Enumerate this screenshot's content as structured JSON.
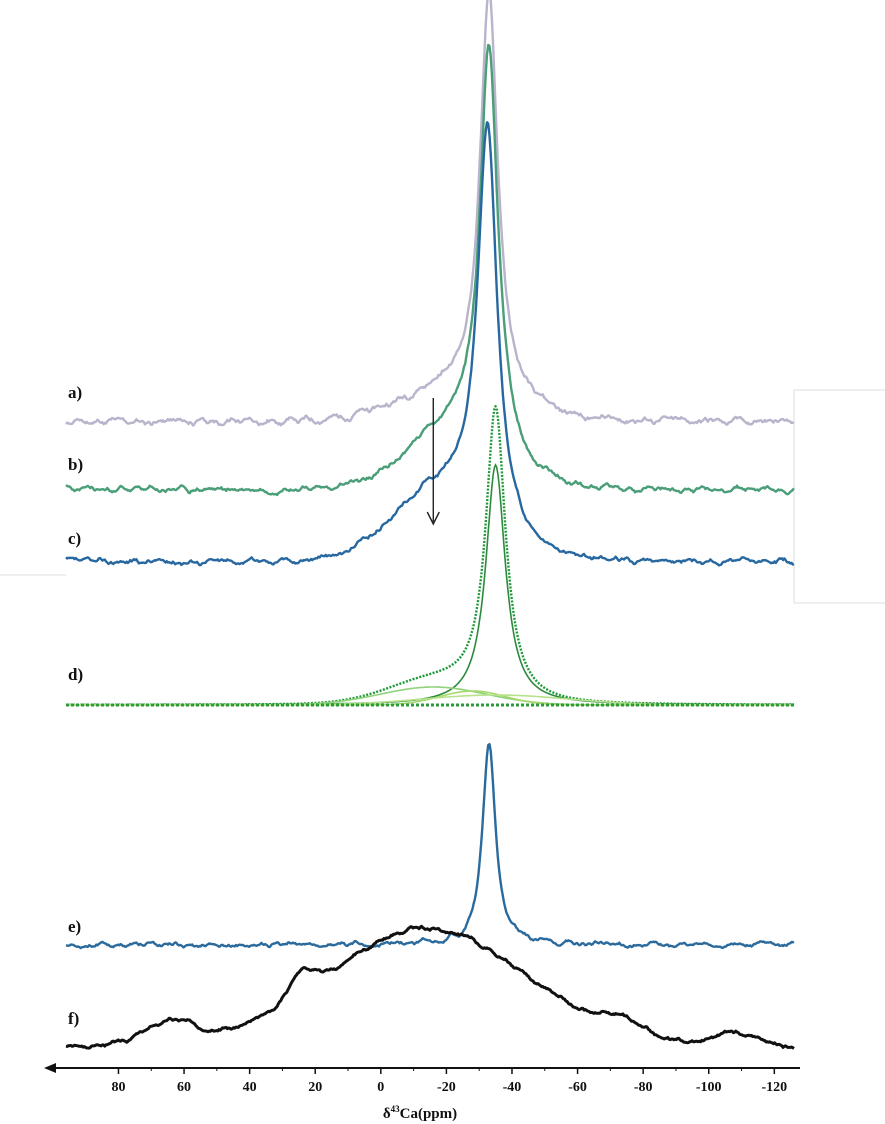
{
  "chart_data": {
    "type": "line",
    "xlabel": "δ⁴³Ca(ppm)",
    "xlabel_prefix": "δ",
    "xlabel_sup": "43",
    "xlabel_rest": "Ca(ppm)",
    "xlim": [
      96,
      -126
    ],
    "x_reversed": true,
    "x_ticks": [
      80,
      60,
      40,
      20,
      0,
      -20,
      -40,
      -60,
      -80,
      -100,
      -120
    ],
    "x_tick_labels": [
      "80",
      "60",
      "40",
      "20",
      "0",
      "-20",
      "-40",
      "-60",
      "-80",
      "-100",
      "-120"
    ],
    "grid": false,
    "legend": "none",
    "annotations": [
      {
        "type": "arrow",
        "x": -16,
        "description": "downward arrow marking shoulder"
      }
    ],
    "series": [
      {
        "label": "a)",
        "color": "#b8b4cc",
        "peak_x": -33,
        "peak_height": 410,
        "peak_width": 3.2,
        "broad_height": 30,
        "broad_x": -22,
        "broad_width": 16,
        "noise_amp": 9,
        "seed": 11
      },
      {
        "label": "b)",
        "color": "#4a9e78",
        "peak_x": -33,
        "peak_height": 405,
        "peak_width": 3.3,
        "broad_height": 60,
        "broad_x": -22,
        "broad_width": 13,
        "noise_amp": 8,
        "seed": 23
      },
      {
        "label": "c)",
        "color": "#2868a0",
        "peak_x": -32.5,
        "peak_height": 400,
        "peak_width": 3.5,
        "broad_height": 70,
        "broad_x": -18,
        "broad_width": 14,
        "noise_amp": 7,
        "seed": 37
      },
      {
        "label": "d)",
        "color": "#1f9a3a",
        "peak_x": -35,
        "peak_height": 290,
        "peak_width": 3.6,
        "broad_height": 22,
        "broad_x": -16,
        "broad_width": 14,
        "noise_amp": 0,
        "seed": 41,
        "components": [
          {
            "center": -35,
            "height": 240,
            "width": 3.6,
            "color": "#2c8a3c"
          },
          {
            "center": -16,
            "height": 18,
            "width": 16,
            "color": "#8fd27a"
          },
          {
            "center": -28,
            "height": 14,
            "width": 10,
            "color": "#a6d96a"
          },
          {
            "center": -35,
            "height": 10,
            "width": 22,
            "color": "#b7e28b"
          }
        ]
      },
      {
        "label": "e)",
        "color": "#2b6a9c",
        "peak_x": -33,
        "peak_height": 200,
        "peak_width": 2.4,
        "broad_height": 0,
        "broad_x": -20,
        "broad_width": 10,
        "noise_amp": 6,
        "seed": 53
      },
      {
        "label": "f)",
        "color": "#111111",
        "peak_x": -10,
        "peak_height": 0,
        "peak_width": 5,
        "broad_height": 0,
        "broad_x": -10,
        "broad_width": 10,
        "noise_amp": 5,
        "seed": 67,
        "envelope": [
          {
            "center": -14,
            "height": 118,
            "width": 30
          },
          {
            "center": 24,
            "height": 25,
            "width": 4
          },
          {
            "center": 64,
            "height": 22,
            "width": 8
          },
          {
            "center": -74,
            "height": 14,
            "width": 6
          },
          {
            "center": -108,
            "height": 14,
            "width": 6
          }
        ]
      }
    ]
  }
}
